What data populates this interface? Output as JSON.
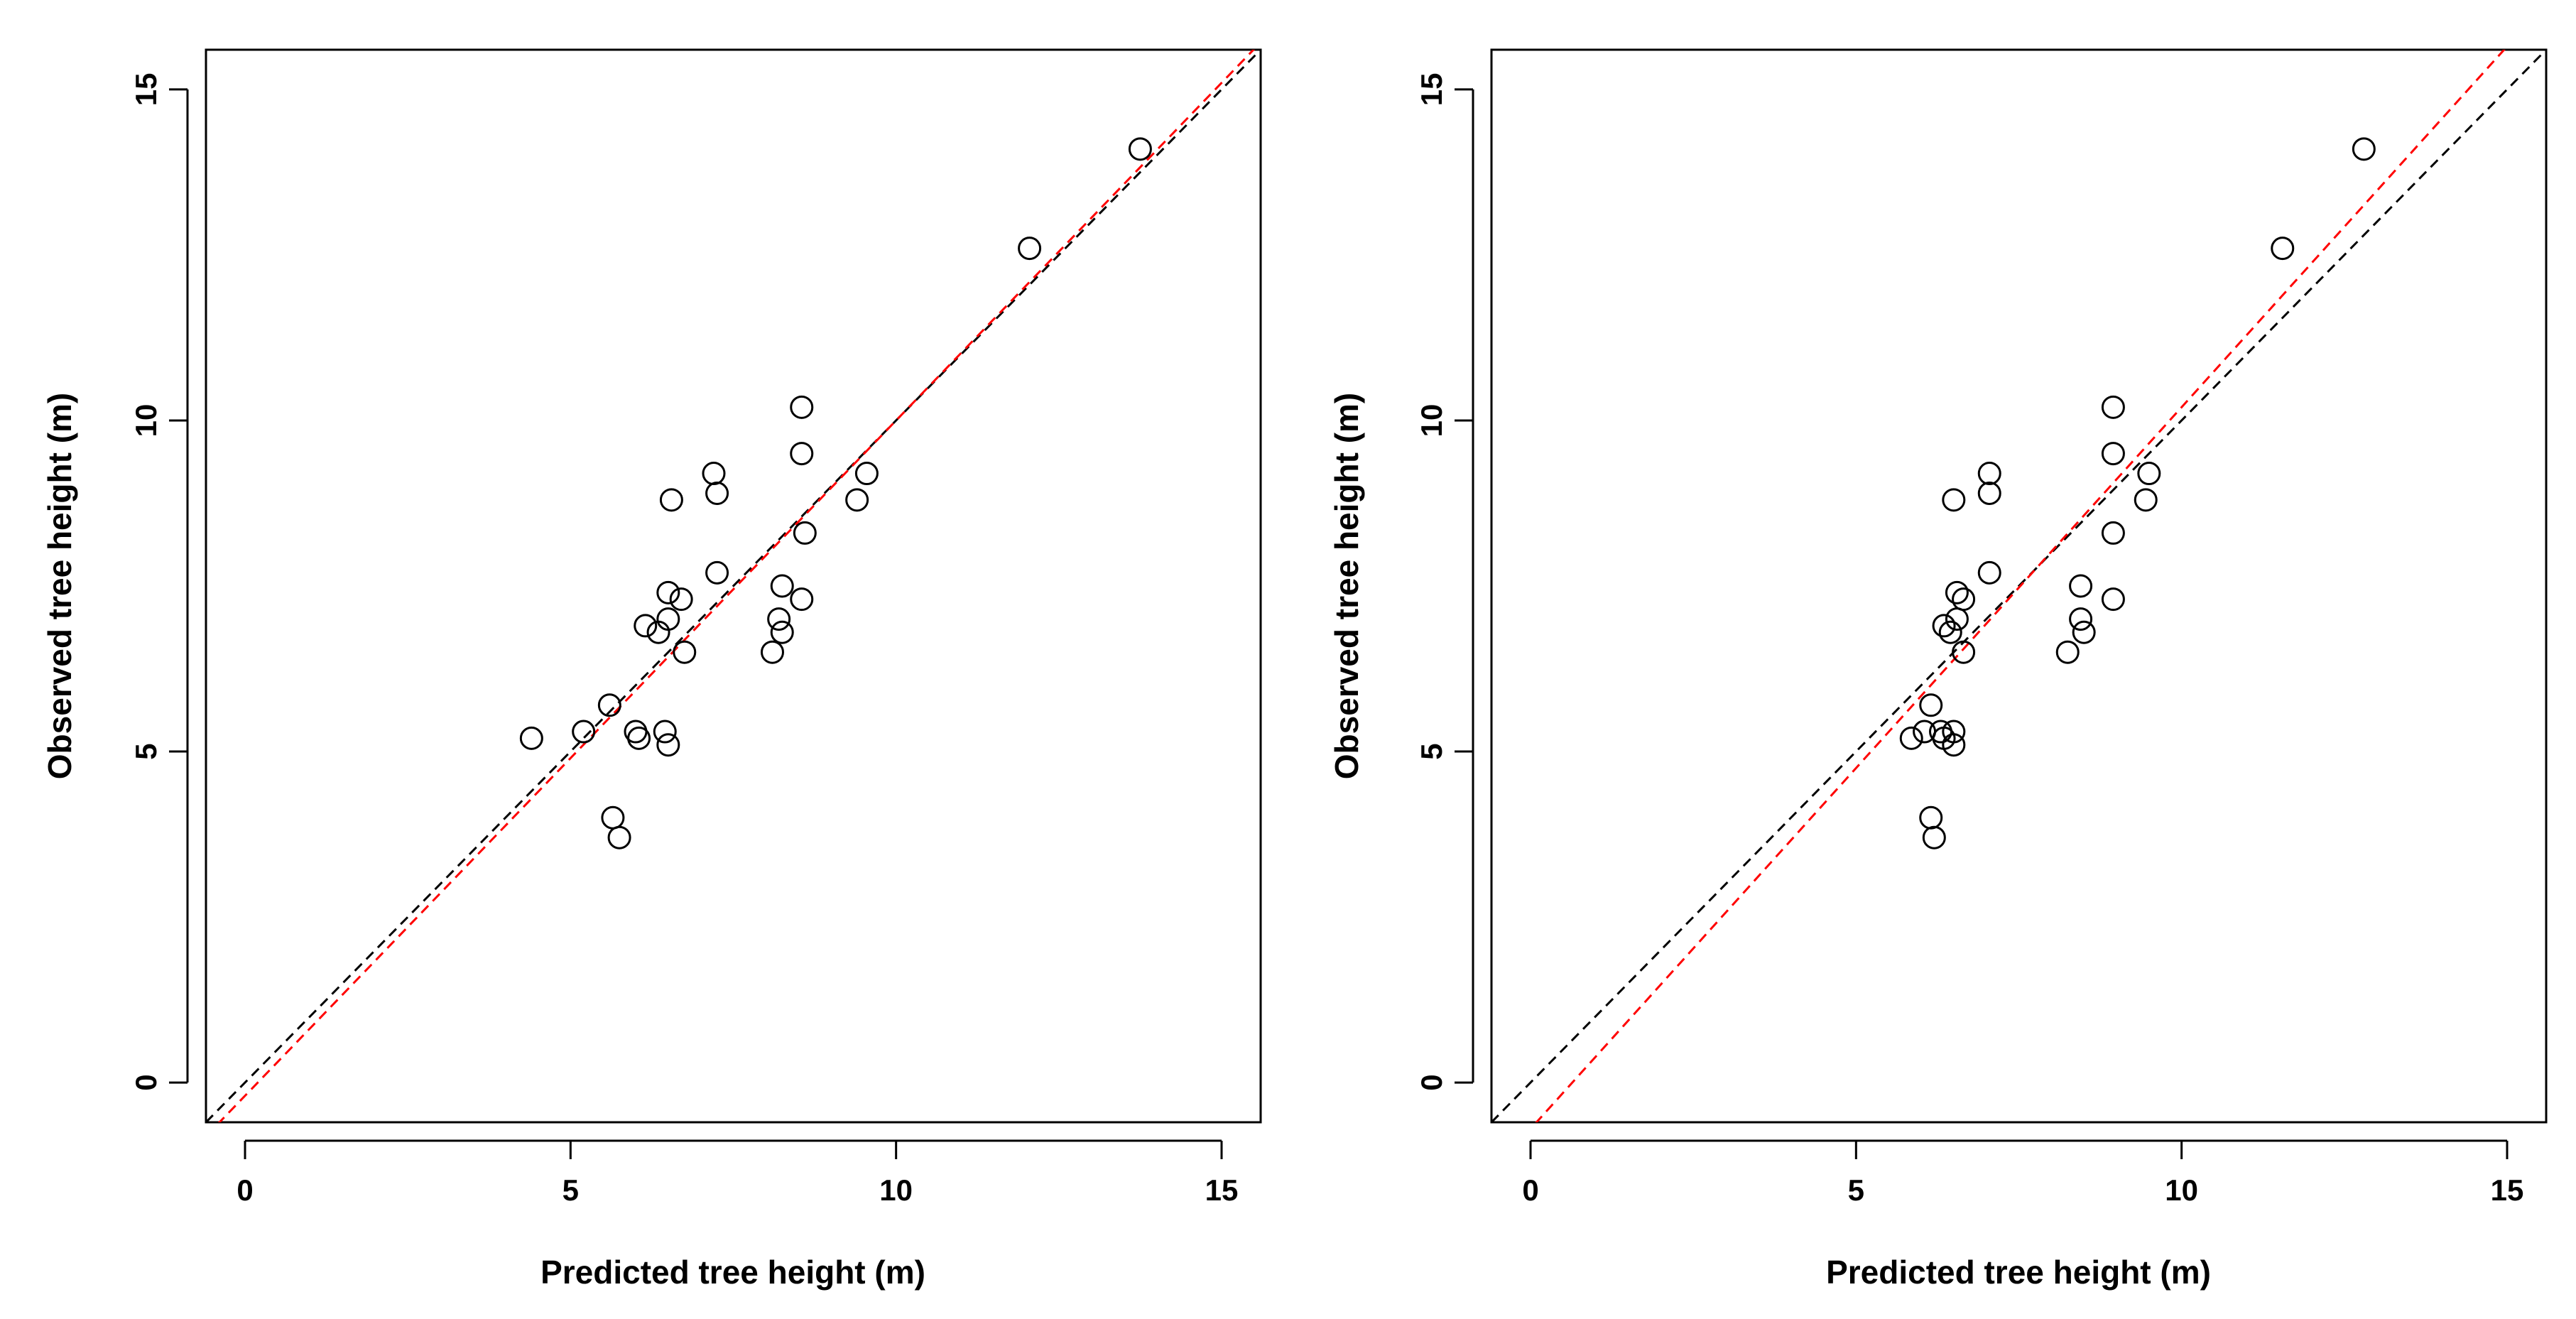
{
  "chart_data": [
    {
      "type": "scatter",
      "title": "",
      "xlabel": "Predicted tree height (m)",
      "ylabel": "Observed tree height (m)",
      "xlim": [
        -0.6,
        15.6
      ],
      "ylim": [
        -0.6,
        15.6
      ],
      "xticks": [
        0,
        5,
        10,
        15
      ],
      "yticks": [
        0,
        5,
        10,
        15
      ],
      "grid": false,
      "point_style": "open-circle",
      "points": [
        {
          "x": 4.4,
          "y": 5.2
        },
        {
          "x": 5.2,
          "y": 5.3
        },
        {
          "x": 5.6,
          "y": 5.7
        },
        {
          "x": 5.65,
          "y": 4.0
        },
        {
          "x": 5.75,
          "y": 3.7
        },
        {
          "x": 6.0,
          "y": 5.3
        },
        {
          "x": 6.05,
          "y": 5.2
        },
        {
          "x": 6.15,
          "y": 6.9
        },
        {
          "x": 6.35,
          "y": 6.8
        },
        {
          "x": 6.45,
          "y": 5.3
        },
        {
          "x": 6.5,
          "y": 5.1
        },
        {
          "x": 6.5,
          "y": 7.4
        },
        {
          "x": 6.5,
          "y": 7.0
        },
        {
          "x": 6.55,
          "y": 8.8
        },
        {
          "x": 6.7,
          "y": 7.3
        },
        {
          "x": 6.75,
          "y": 6.5
        },
        {
          "x": 7.2,
          "y": 9.2
        },
        {
          "x": 7.25,
          "y": 8.9
        },
        {
          "x": 7.25,
          "y": 7.7
        },
        {
          "x": 8.1,
          "y": 6.5
        },
        {
          "x": 8.2,
          "y": 7.0
        },
        {
          "x": 8.25,
          "y": 7.5
        },
        {
          "x": 8.25,
          "y": 6.8
        },
        {
          "x": 8.55,
          "y": 10.2
        },
        {
          "x": 8.55,
          "y": 9.5
        },
        {
          "x": 8.6,
          "y": 8.3
        },
        {
          "x": 8.55,
          "y": 7.3
        },
        {
          "x": 9.4,
          "y": 8.8
        },
        {
          "x": 9.55,
          "y": 9.2
        },
        {
          "x": 12.05,
          "y": 12.6
        },
        {
          "x": 13.75,
          "y": 14.1
        }
      ],
      "lines": [
        {
          "name": "1:1 line",
          "color": "#000000",
          "style": "dashed",
          "intercept": 0,
          "slope": 1
        },
        {
          "name": "regression fit",
          "color": "#ff0000",
          "style": "dashed",
          "intercept": -0.2,
          "slope": 1.02
        }
      ]
    },
    {
      "type": "scatter",
      "title": "",
      "xlabel": "Predicted tree height (m)",
      "ylabel": "Observed tree height (m)",
      "xlim": [
        -0.6,
        15.6
      ],
      "ylim": [
        -0.6,
        15.6
      ],
      "xticks": [
        0,
        5,
        10,
        15
      ],
      "yticks": [
        0,
        5,
        10,
        15
      ],
      "grid": false,
      "point_style": "open-circle",
      "points": [
        {
          "x": 5.85,
          "y": 5.2
        },
        {
          "x": 6.05,
          "y": 5.3
        },
        {
          "x": 6.15,
          "y": 5.7
        },
        {
          "x": 6.15,
          "y": 4.0
        },
        {
          "x": 6.2,
          "y": 3.7
        },
        {
          "x": 6.3,
          "y": 5.3
        },
        {
          "x": 6.35,
          "y": 5.2
        },
        {
          "x": 6.35,
          "y": 6.9
        },
        {
          "x": 6.45,
          "y": 6.8
        },
        {
          "x": 6.5,
          "y": 5.3
        },
        {
          "x": 6.5,
          "y": 5.1
        },
        {
          "x": 6.55,
          "y": 7.4
        },
        {
          "x": 6.55,
          "y": 7.0
        },
        {
          "x": 6.5,
          "y": 8.8
        },
        {
          "x": 6.65,
          "y": 7.3
        },
        {
          "x": 6.65,
          "y": 6.5
        },
        {
          "x": 7.05,
          "y": 9.2
        },
        {
          "x": 7.05,
          "y": 8.9
        },
        {
          "x": 7.05,
          "y": 7.7
        },
        {
          "x": 8.25,
          "y": 6.5
        },
        {
          "x": 8.45,
          "y": 7.0
        },
        {
          "x": 8.45,
          "y": 7.5
        },
        {
          "x": 8.5,
          "y": 6.8
        },
        {
          "x": 8.95,
          "y": 10.2
        },
        {
          "x": 8.95,
          "y": 9.5
        },
        {
          "x": 8.95,
          "y": 8.3
        },
        {
          "x": 8.95,
          "y": 7.3
        },
        {
          "x": 9.45,
          "y": 8.8
        },
        {
          "x": 9.5,
          "y": 9.2
        },
        {
          "x": 11.55,
          "y": 12.6
        },
        {
          "x": 12.8,
          "y": 14.1
        }
      ],
      "lines": [
        {
          "name": "1:1 line",
          "color": "#000000",
          "style": "dashed",
          "intercept": 0,
          "slope": 1
        },
        {
          "name": "regression fit",
          "color": "#ff0000",
          "style": "dashed",
          "intercept": -0.7,
          "slope": 1.09
        }
      ]
    }
  ]
}
